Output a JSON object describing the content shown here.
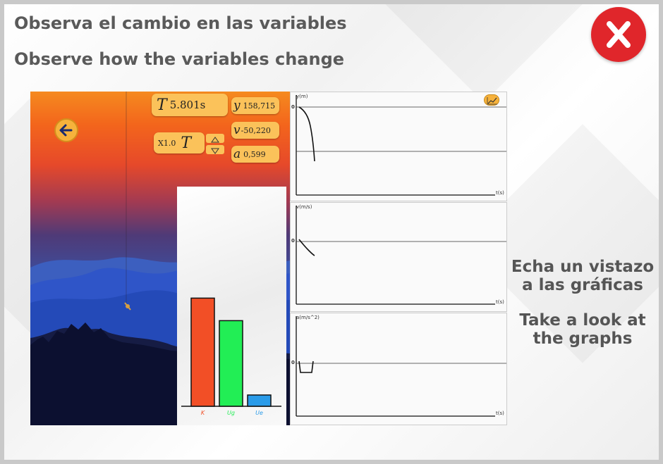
{
  "header": {
    "title_es": "Observa el cambio en las variables",
    "title_en": "Observe how the variables change"
  },
  "side": {
    "line_es_1": "Echa un vistazo",
    "line_es_2": "a las gráficas",
    "line_en_1": "Take a look at",
    "line_en_2": "the graphs"
  },
  "sim": {
    "time_symbol": "T",
    "time_value": "5.801s",
    "speed_label": "X1.0",
    "speed_symbol": "T",
    "y_label": "y",
    "y_value": "158,715",
    "v_label": "v",
    "v_value": "-50,220",
    "a_label": "a",
    "a_value": "0,599"
  },
  "graphs": {
    "position_axis_y": "y(m)",
    "position_axis_x": "t(s)",
    "velocity_axis_y": "v(m/s)",
    "velocity_axis_x": "t(s)",
    "accel_axis_y": "a(m/s^2)",
    "accel_axis_x": "t(s)",
    "zero_label": "0"
  },
  "energy_chart": {
    "chart_data": {
      "type": "bar",
      "categories": [
        "K",
        "Ug",
        "Ue"
      ],
      "values": [
        0.48,
        0.38,
        0.05
      ],
      "colors": [
        "#f24f26",
        "#22ee55",
        "#2a9be8"
      ]
    }
  },
  "colors": {
    "close": "#e0262b",
    "accent": "#fbc25a"
  },
  "icons": {
    "close": "close-x-icon",
    "back": "arrow-left-icon",
    "graph_toggle": "line-chart-icon",
    "up": "triangle-up-icon",
    "down": "triangle-down-icon"
  }
}
